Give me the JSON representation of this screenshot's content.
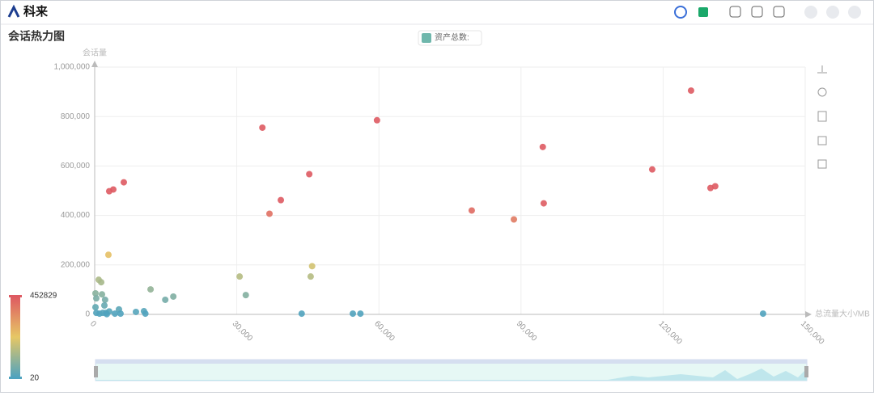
{
  "app": {
    "logo": "科来",
    "panel_title": "会话热力图"
  },
  "chart_data": {
    "type": "scatter",
    "y_axis_name": "会话量",
    "x_axis_name": "总流量大小/MB",
    "xlim": [
      0,
      150000
    ],
    "ylim": [
      0,
      1000000
    ],
    "xticks": [
      0,
      {
        "value": 30000,
        "label": "30,000"
      },
      {
        "value": 60000,
        "label": "60,000"
      },
      {
        "value": 90000,
        "label": "90,000"
      },
      {
        "value": 120000,
        "label": "120,000"
      },
      {
        "value": 150000,
        "label": "150,000"
      }
    ],
    "yticks": [
      0,
      {
        "value": 200000,
        "label": "200,000"
      },
      {
        "value": 400000,
        "label": "400,000"
      },
      {
        "value": 600000,
        "label": "600,000"
      },
      {
        "value": 800000,
        "label": "800,000"
      },
      {
        "value": 1000000,
        "label": "1,000,000"
      }
    ],
    "grid": true,
    "visual_map": {
      "min": 20,
      "max": 452829,
      "colors": [
        "#4fa3bf",
        "#e6c765",
        "#de5a62"
      ]
    },
    "x": [
      125900,
      59600,
      35400,
      94600,
      117700,
      45300,
      6150,
      3930,
      3070,
      130000,
      131000,
      39300,
      94800,
      79600,
      36900,
      88500,
      2900,
      45900,
      45600,
      30600,
      850,
      1370,
      31900,
      11800,
      16600,
      14900,
      170,
      1540,
      340,
      2200,
      170,
      2050,
      340,
      1020,
      1710,
      2390,
      3070,
      2560,
      5120,
      5460,
      4270,
      8710,
      10400,
      10700,
      43700,
      54500,
      56100,
      141100
    ],
    "series": [
      {
        "name": "资产总数:",
        "values": [
          905000,
          785000,
          755000,
          677000,
          586000,
          567000,
          534000,
          505000,
          498000,
          511000,
          518000,
          462000,
          449000,
          420000,
          407000,
          384000,
          241000,
          195000,
          153000,
          153000,
          140000,
          130000,
          78000,
          101000,
          72000,
          59000,
          85000,
          81000,
          65000,
          59000,
          29000,
          36000,
          6000,
          3000,
          6000,
          6000,
          12000,
          1000,
          20000,
          3000,
          3000,
          10000,
          13000,
          3000,
          3000,
          3000,
          3000,
          3000
        ]
      }
    ]
  }
}
